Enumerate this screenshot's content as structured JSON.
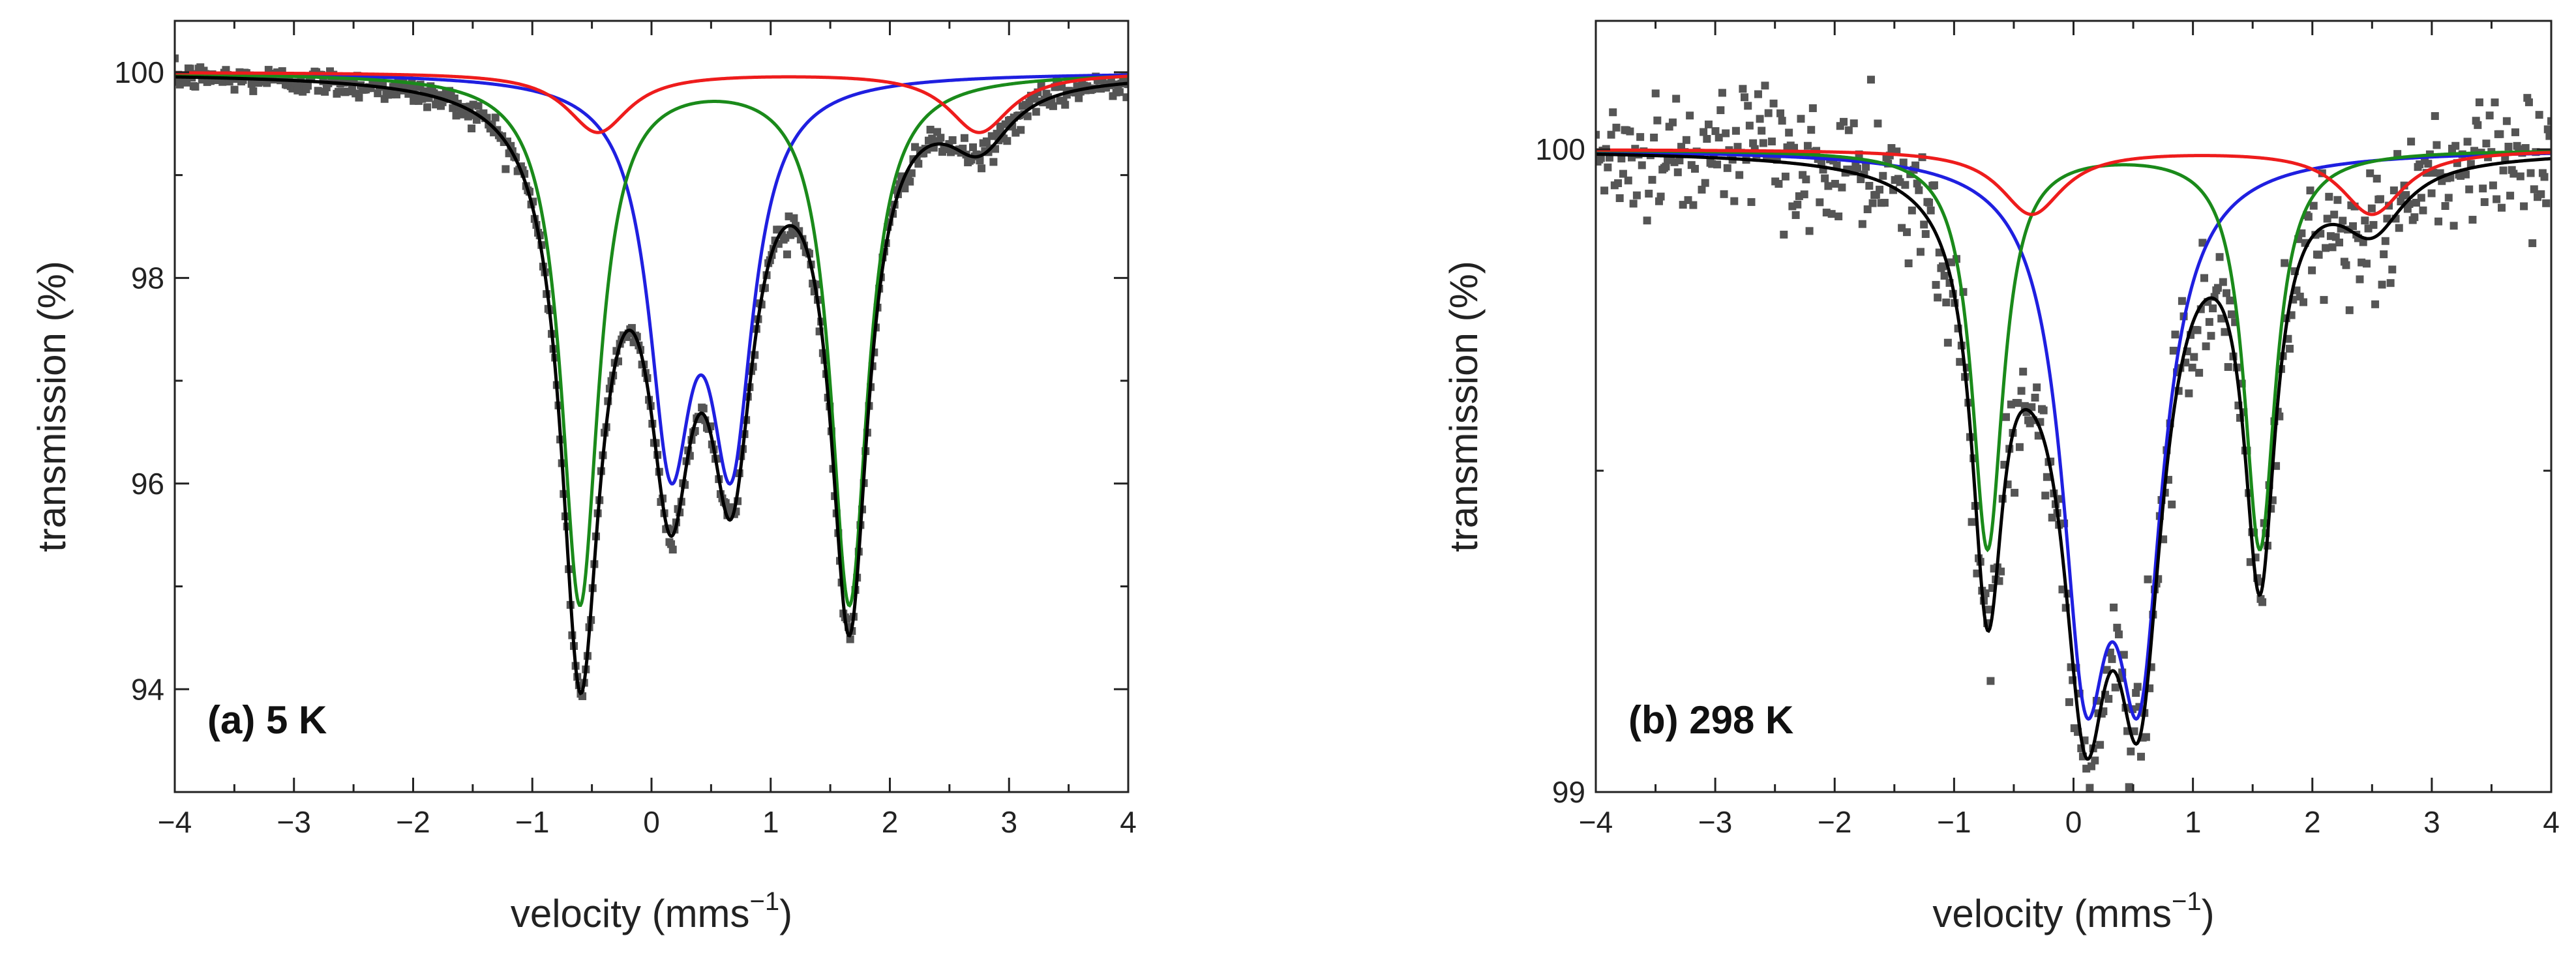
{
  "chart_data": [
    {
      "type": "scatter",
      "title": "",
      "annotation": "(a) 5 K",
      "xlabel": "velocity (mms−1)",
      "ylabel": "transmission (%)",
      "xlim": [
        -4,
        4
      ],
      "ylim": [
        93,
        100.5
      ],
      "xticks": [
        -4,
        -3,
        -2,
        -1,
        0,
        1,
        2,
        3,
        4
      ],
      "xtick_labels": [
        "−4",
        "−3",
        "−2",
        "−1",
        "0",
        "1",
        "2",
        "3",
        "4"
      ],
      "yticks": [
        94,
        96,
        98,
        100
      ],
      "ytick_labels": [
        "94",
        "96",
        "98",
        "100"
      ],
      "series": [
        {
          "name": "data",
          "kind": "points",
          "color": "#555555"
        },
        {
          "name": "total fit",
          "kind": "line",
          "color": "#000000"
        },
        {
          "name": "doublet blue",
          "kind": "line",
          "color": "#1f1fe0",
          "components": [
            {
              "center": 0.16,
              "depth": 3.45,
              "width": 0.22
            },
            {
              "center": 0.67,
              "depth": 3.45,
              "width": 0.22
            }
          ]
        },
        {
          "name": "doublet green",
          "kind": "line",
          "color": "#1a8a1a",
          "components": [
            {
              "center": -0.6,
              "depth": 5.15,
              "width": 0.19
            },
            {
              "center": 1.66,
              "depth": 5.15,
              "width": 0.19
            }
          ]
        },
        {
          "name": "doublet red",
          "kind": "line",
          "color": "#ee1c1c",
          "components": [
            {
              "center": -0.45,
              "depth": 0.58,
              "width": 0.32
            },
            {
              "center": 2.75,
              "depth": 0.58,
              "width": 0.32
            }
          ]
        }
      ]
    },
    {
      "type": "scatter",
      "title": "",
      "annotation": "(b) 298 K",
      "xlabel": "velocity (mms−1)",
      "ylabel": "transmission (%)",
      "xlim": [
        -4,
        4
      ],
      "ylim": [
        99,
        100.2
      ],
      "xticks": [
        -4,
        -3,
        -2,
        -1,
        0,
        1,
        2,
        3,
        4
      ],
      "xtick_labels": [
        "−4",
        "−3",
        "−2",
        "−1",
        "0",
        "1",
        "2",
        "3",
        "4"
      ],
      "yticks": [
        99,
        100
      ],
      "ytick_labels": [
        "99",
        "100"
      ],
      "series": [
        {
          "name": "data",
          "kind": "points",
          "color": "#555555"
        },
        {
          "name": "total fit",
          "kind": "line",
          "color": "#000000"
        },
        {
          "name": "doublet blue",
          "kind": "line",
          "color": "#1f1fe0",
          "components": [
            {
              "center": 0.1,
              "depth": 0.72,
              "width": 0.24
            },
            {
              "center": 0.55,
              "depth": 0.72,
              "width": 0.24
            }
          ]
        },
        {
          "name": "doublet green",
          "kind": "line",
          "color": "#1a8a1a",
          "components": [
            {
              "center": -0.72,
              "depth": 0.62,
              "width": 0.16
            },
            {
              "center": 1.56,
              "depth": 0.62,
              "width": 0.16
            }
          ]
        },
        {
          "name": "doublet red",
          "kind": "line",
          "color": "#ee1c1c",
          "components": [
            {
              "center": -0.35,
              "depth": 0.1,
              "width": 0.32
            },
            {
              "center": 2.5,
              "depth": 0.1,
              "width": 0.32
            }
          ]
        }
      ]
    }
  ]
}
